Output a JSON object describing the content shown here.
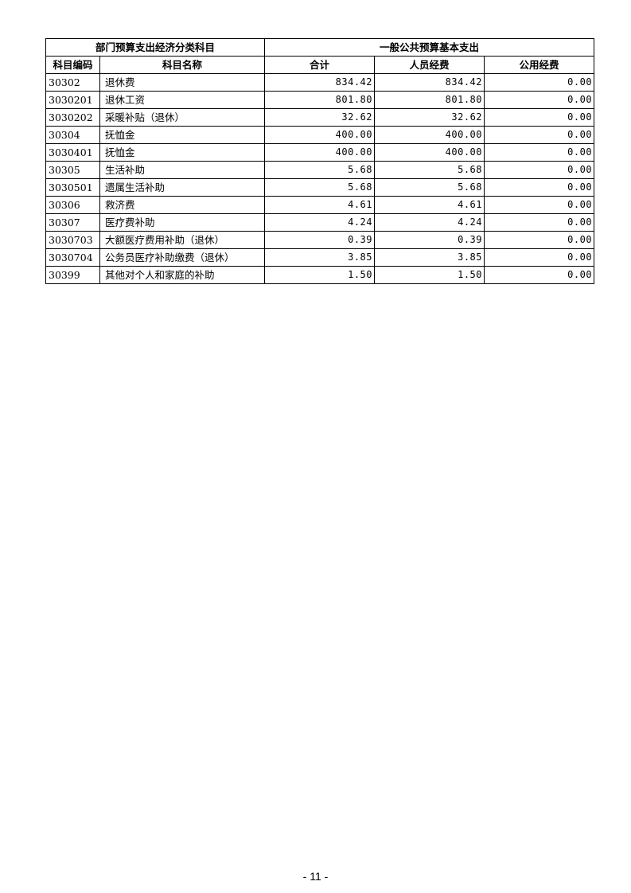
{
  "table": {
    "group_headers": [
      "部门预算支出经济分类科目",
      "一般公共预算基本支出"
    ],
    "columns": [
      "科目编码",
      "科目名称",
      "合计",
      "人员经费",
      "公用经费"
    ],
    "rows": [
      [
        "30302",
        "退休费",
        "834.42",
        "834.42",
        "0.00"
      ],
      [
        "3030201",
        "退休工资",
        "801.80",
        "801.80",
        "0.00"
      ],
      [
        "3030202",
        "采暖补贴（退休）",
        "32.62",
        "32.62",
        "0.00"
      ],
      [
        "30304",
        "抚恤金",
        "400.00",
        "400.00",
        "0.00"
      ],
      [
        "3030401",
        "抚恤金",
        "400.00",
        "400.00",
        "0.00"
      ],
      [
        "30305",
        "生活补助",
        "5.68",
        "5.68",
        "0.00"
      ],
      [
        "3030501",
        "遗属生活补助",
        "5.68",
        "5.68",
        "0.00"
      ],
      [
        "30306",
        "救济费",
        "4.61",
        "4.61",
        "0.00"
      ],
      [
        "30307",
        "医疗费补助",
        "4.24",
        "4.24",
        "0.00"
      ],
      [
        "3030703",
        "大额医疗费用补助（退休）",
        "0.39",
        "0.39",
        "0.00"
      ],
      [
        "3030704",
        "公务员医疗补助缴费（退休）",
        "3.85",
        "3.85",
        "0.00"
      ],
      [
        "30399",
        "其他对个人和家庭的补助",
        "1.50",
        "1.50",
        "0.00"
      ]
    ]
  },
  "page_number": "- 11 -"
}
